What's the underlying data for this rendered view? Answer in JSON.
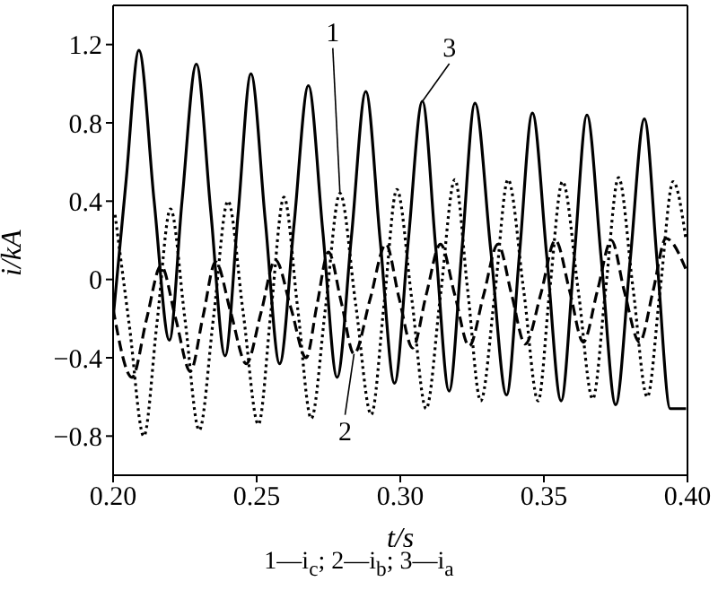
{
  "chart_data": {
    "type": "line",
    "xlabel": "t/s",
    "ylabel": "i/kA",
    "xlim": [
      0.2,
      0.4
    ],
    "xticks": [
      {
        "value": 0.2,
        "label": "0.20"
      },
      {
        "value": 0.25,
        "label": "0.25"
      },
      {
        "value": 0.3,
        "label": "0.30"
      },
      {
        "value": 0.35,
        "label": "0.35"
      },
      {
        "value": 0.4,
        "label": "0.40"
      }
    ],
    "ylim": [
      -1.0,
      1.4
    ],
    "yticks": [
      {
        "value": -0.8,
        "label": "−0.8"
      },
      {
        "value": -0.4,
        "label": "−0.4"
      },
      0,
      0.4,
      0.8,
      1.2
    ],
    "legend": false,
    "marker": "none",
    "series": [
      {
        "color": "#000000",
        "line_style": "dotted",
        "x": [
          0.2007,
          0.2057,
          0.2107,
          0.2153,
          0.22,
          0.225,
          0.23,
          0.235,
          0.24,
          0.2453,
          0.2506,
          0.255,
          0.2595,
          0.2643,
          0.269,
          0.274,
          0.279,
          0.2845,
          0.2899,
          0.2944,
          0.2988,
          0.304,
          0.309,
          0.314,
          0.319,
          0.3235,
          0.328,
          0.333,
          0.3375,
          0.343,
          0.348,
          0.352,
          0.3565,
          0.362,
          0.367,
          0.3715,
          0.376,
          0.381,
          0.386,
          0.3905,
          0.395,
          0.3995
        ],
        "values": [
          0.33,
          -0.24,
          -0.8,
          -0.22,
          0.36,
          -0.2,
          -0.77,
          -0.19,
          0.4,
          -0.17,
          -0.74,
          -0.16,
          0.42,
          -0.15,
          -0.71,
          -0.14,
          0.44,
          -0.13,
          -0.69,
          -0.12,
          0.46,
          -0.1,
          -0.66,
          -0.08,
          0.51,
          -0.06,
          -0.62,
          -0.06,
          0.51,
          -0.06,
          -0.62,
          -0.06,
          0.5,
          -0.06,
          -0.61,
          -0.05,
          0.52,
          -0.04,
          -0.6,
          -0.05,
          0.5,
          0.2
        ]
      },
      {
        "color": "#000000",
        "line_style": "dashed",
        "x": [
          0.2,
          0.2066,
          0.2117,
          0.2167,
          0.2218,
          0.2269,
          0.2313,
          0.2357,
          0.241,
          0.2464,
          0.2515,
          0.2565,
          0.262,
          0.2672,
          0.271,
          0.275,
          0.2795,
          0.2839,
          0.2895,
          0.295,
          0.2995,
          0.3043,
          0.309,
          0.314,
          0.319,
          0.324,
          0.329,
          0.334,
          0.3388,
          0.3435,
          0.349,
          0.354,
          0.359,
          0.3637,
          0.3686,
          0.3735,
          0.378,
          0.3833,
          0.388,
          0.3925,
          0.3995
        ],
        "values": [
          -0.15,
          -0.5,
          -0.2,
          0.07,
          -0.2,
          -0.47,
          -0.19,
          0.09,
          -0.17,
          -0.43,
          -0.17,
          0.1,
          -0.15,
          -0.4,
          -0.13,
          0.14,
          -0.12,
          -0.38,
          -0.1,
          0.18,
          -0.09,
          -0.35,
          -0.08,
          0.18,
          -0.08,
          -0.34,
          -0.08,
          0.18,
          -0.08,
          -0.33,
          -0.07,
          0.2,
          -0.06,
          -0.32,
          -0.06,
          0.2,
          -0.06,
          -0.32,
          -0.06,
          0.21,
          0.05
        ]
      },
      {
        "color": "#000000",
        "line_style": "solid",
        "x": [
          0.2,
          0.2045,
          0.209,
          0.2143,
          0.2196,
          0.224,
          0.229,
          0.234,
          0.239,
          0.2435,
          0.248,
          0.253,
          0.258,
          0.263,
          0.268,
          0.273,
          0.278,
          0.283,
          0.288,
          0.293,
          0.298,
          0.3028,
          0.3077,
          0.3123,
          0.317,
          0.3215,
          0.326,
          0.3315,
          0.337,
          0.3415,
          0.346,
          0.351,
          0.356,
          0.3605,
          0.365,
          0.37,
          0.375,
          0.38,
          0.385,
          0.3895,
          0.394,
          0.3995
        ],
        "values": [
          -0.2,
          0.5,
          1.17,
          0.4,
          -0.31,
          0.4,
          1.1,
          0.35,
          -0.39,
          0.33,
          1.05,
          0.3,
          -0.43,
          0.28,
          0.99,
          0.25,
          -0.5,
          0.22,
          0.96,
          0.2,
          -0.53,
          0.2,
          0.91,
          0.17,
          -0.57,
          0.16,
          0.9,
          0.15,
          -0.59,
          0.13,
          0.85,
          0.12,
          -0.62,
          0.1,
          0.84,
          0.1,
          -0.64,
          0.09,
          0.82,
          0.08,
          -0.66,
          -0.66
        ]
      }
    ],
    "annotations": [
      {
        "text": "1",
        "x": 0.279,
        "y": 0.44
      },
      {
        "text": "2",
        "x": 0.2839,
        "y": -0.38
      },
      {
        "text": "3",
        "x": 0.3077,
        "y": 0.91
      },
      "1—i$_{c}$; 2—i$_{b}$; 3—i$_{a}$"
    ]
  }
}
